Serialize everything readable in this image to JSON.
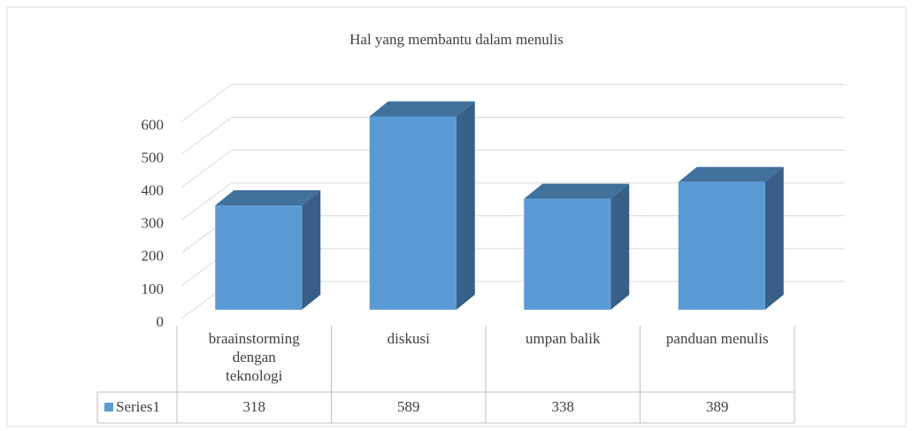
{
  "chart_data": {
    "type": "bar3d",
    "title": "Hal yang membantu dalam menulis",
    "categories": [
      "braainstorming dengan teknologi",
      "diskusi",
      "umpan balik",
      "panduan menulis"
    ],
    "series": [
      {
        "name": "Series1",
        "color": "#5b9bd5",
        "values": [
          318,
          589,
          338,
          389
        ]
      }
    ],
    "ylim": [
      0,
      600
    ],
    "yticks": [
      0,
      100,
      200,
      300,
      400,
      500,
      600
    ],
    "grid": true,
    "data_table": true
  }
}
